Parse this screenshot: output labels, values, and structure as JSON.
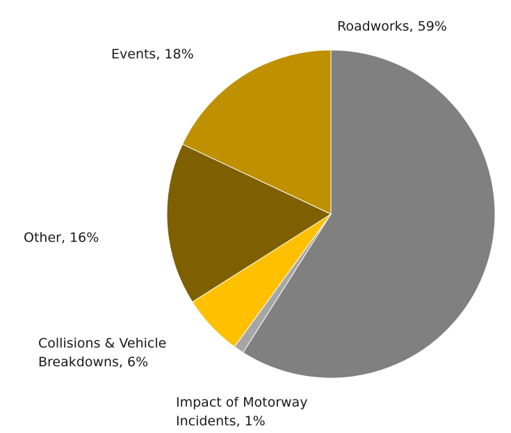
{
  "chart_data": {
    "type": "pie",
    "title": "",
    "slices": [
      {
        "label": "Roadworks",
        "value": 59,
        "label_text": [
          "Roadworks, 59%"
        ],
        "color": "#808080"
      },
      {
        "label": "Impact of Motorway Incidents",
        "value": 1,
        "label_text": [
          "Impact of Motorway",
          "Incidents, 1%"
        ],
        "color": "#A6A6A6"
      },
      {
        "label": "Collisions & Vehicle Breakdowns",
        "value": 6,
        "label_text": [
          "Collisions & Vehicle",
          "Breakdowns, 6%"
        ],
        "color": "#FFC000"
      },
      {
        "label": "Other",
        "value": 16,
        "label_text": [
          "Other, 16%"
        ],
        "color": "#7F6000"
      },
      {
        "label": "Events",
        "value": 18,
        "label_text": [
          "Events, 18%"
        ],
        "color": "#BF9000"
      }
    ],
    "start_angle_deg": 0,
    "direction": "clockwise",
    "legend": "none"
  }
}
